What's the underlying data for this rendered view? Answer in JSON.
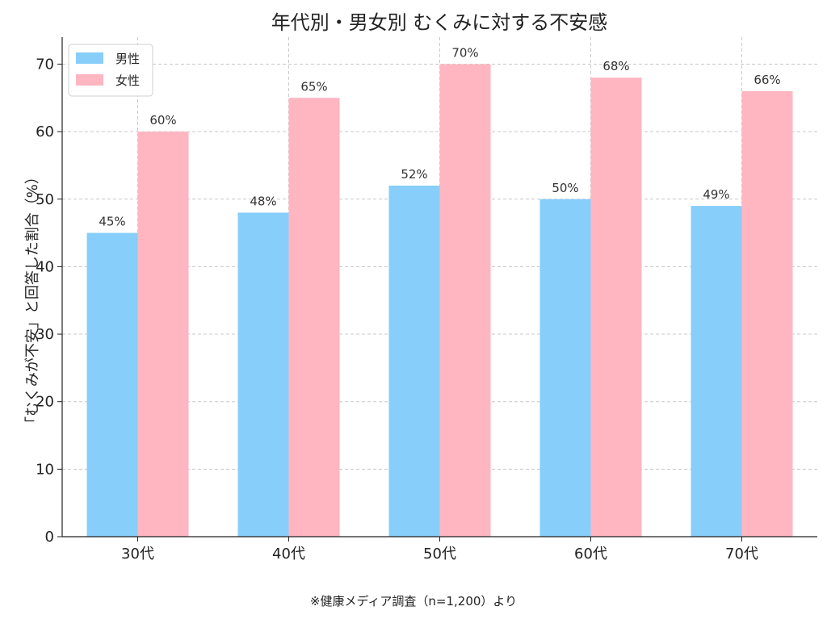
{
  "chart_data": {
    "type": "bar",
    "title": "年代別・男女別 むくみに対する不安感",
    "ylabel": "「むくみが不安」と回答した割合（%）",
    "xlabel": "",
    "categories": [
      "30代",
      "40代",
      "50代",
      "60代",
      "70代"
    ],
    "series": [
      {
        "name": "男性",
        "values": [
          45,
          48,
          52,
          50,
          49
        ],
        "color": "#87CEFA"
      },
      {
        "name": "女性",
        "values": [
          60,
          65,
          70,
          68,
          66
        ],
        "color": "#FFB6C1"
      }
    ],
    "data_label_suffix": "%",
    "ylim": [
      0,
      74
    ],
    "yticks": [
      0,
      10,
      20,
      30,
      40,
      50,
      60,
      70
    ],
    "grid": true,
    "legend_position": "top-left"
  },
  "footnote": "※健康メディア調査（n=1,200）より"
}
